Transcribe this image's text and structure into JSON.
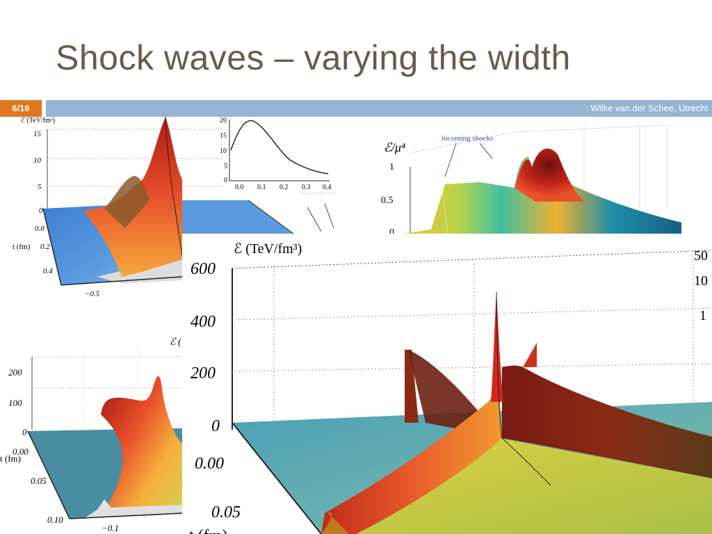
{
  "slide": {
    "title": "Shock waves – varying the width",
    "slide_number": "6/16",
    "author": "Wilke van der Schee, Utrecht",
    "accent_color": "#e2761c",
    "band_color": "#95b5d2",
    "title_color": "#6b5a4a"
  },
  "plot_top_left": {
    "z_label": "ℰ (TeV/fm³)",
    "z_ticks": [
      "15",
      "10",
      "5",
      "0"
    ],
    "t_label": "t (fm)",
    "t_ticks": [
      "0.0",
      "0.2",
      "0.4"
    ],
    "x_ticks": [
      "−0.5"
    ]
  },
  "inset_profile": {
    "y_ticks": [
      "20",
      "15",
      "10",
      "5",
      "0"
    ],
    "x_ticks": [
      "0.0",
      "0.1",
      "0.2",
      "0.3",
      "0.4"
    ]
  },
  "plot_top_right": {
    "z_label": "ℰ/μ⁴",
    "annotation": "incoming shocks",
    "z_ticks": [
      "1",
      "0.5",
      "0"
    ]
  },
  "plot_bottom_left": {
    "z_label": "ℰ (",
    "z_ticks": [
      "200",
      "100",
      "0"
    ],
    "t_label": "t (fm)",
    "t_ticks": [
      "0.00",
      "0.05",
      "0.10"
    ],
    "x_ticks": [
      "−0.1"
    ]
  },
  "plot_main": {
    "z_label": "ℰ (TeV/fm³)",
    "z_ticks": [
      "600",
      "400",
      "200",
      "0"
    ],
    "t_ticks": [
      "0.00",
      "0.05"
    ],
    "t_label": "t (fm)",
    "right_ticks": [
      "50",
      "10",
      "1"
    ]
  }
}
